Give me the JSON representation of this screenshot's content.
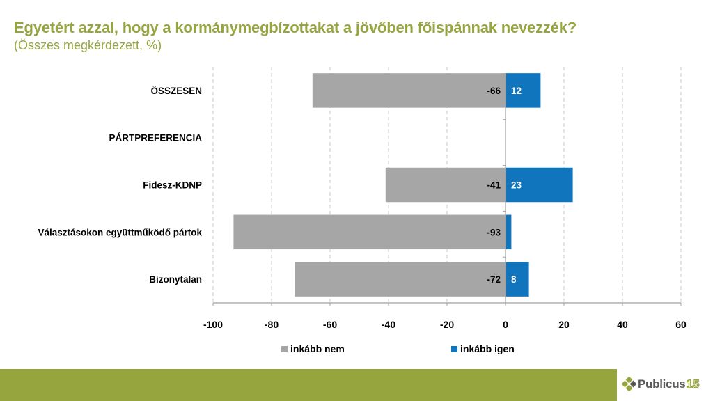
{
  "header": {
    "title": "Egyetért azzal, hogy a kormánymegbízottakat a jövőben főispánnak nevezzék?",
    "subtitle": "(Összes megkérdezett, %)"
  },
  "colors": {
    "accent": "#97a53e",
    "no": "#a6a6a6",
    "yes": "#1075bc"
  },
  "chart_data": {
    "type": "bar",
    "orientation": "horizontal",
    "stacked": "diverging",
    "title": "Egyetért azzal, hogy a kormánymegbízottakat a jövőben főispánnak nevezzék?",
    "subtitle": "(Összes megkérdezett, %)",
    "xlabel": "",
    "ylabel": "",
    "xlim": [
      -100,
      60
    ],
    "xticks": [
      -100,
      -80,
      -60,
      -40,
      -20,
      0,
      20,
      40,
      60
    ],
    "xtick_labels": [
      "-100",
      "-80",
      "-60",
      "-40",
      "-20",
      "0",
      "20",
      "40",
      "60"
    ],
    "grid": "vertical-dashed",
    "legend_position": "bottom",
    "categories": [
      "ÖSSZESEN",
      "PÁRTPREFERENCIA",
      "Fidesz-KDNP",
      "Választásokon együttműködő pártok",
      "Bizonytalan"
    ],
    "series": [
      {
        "name": "inkább nem",
        "color": "#a6a6a6",
        "values": [
          -66,
          null,
          -41,
          -93,
          -72
        ],
        "labels": [
          "-66",
          "",
          "-41",
          "-93",
          "-72"
        ]
      },
      {
        "name": "inkább igen",
        "color": "#1075bc",
        "values": [
          12,
          null,
          23,
          2,
          8
        ],
        "labels": [
          "12",
          "",
          "23",
          "",
          "8"
        ]
      }
    ]
  },
  "logo": {
    "name": "Publicus",
    "number": "15"
  }
}
